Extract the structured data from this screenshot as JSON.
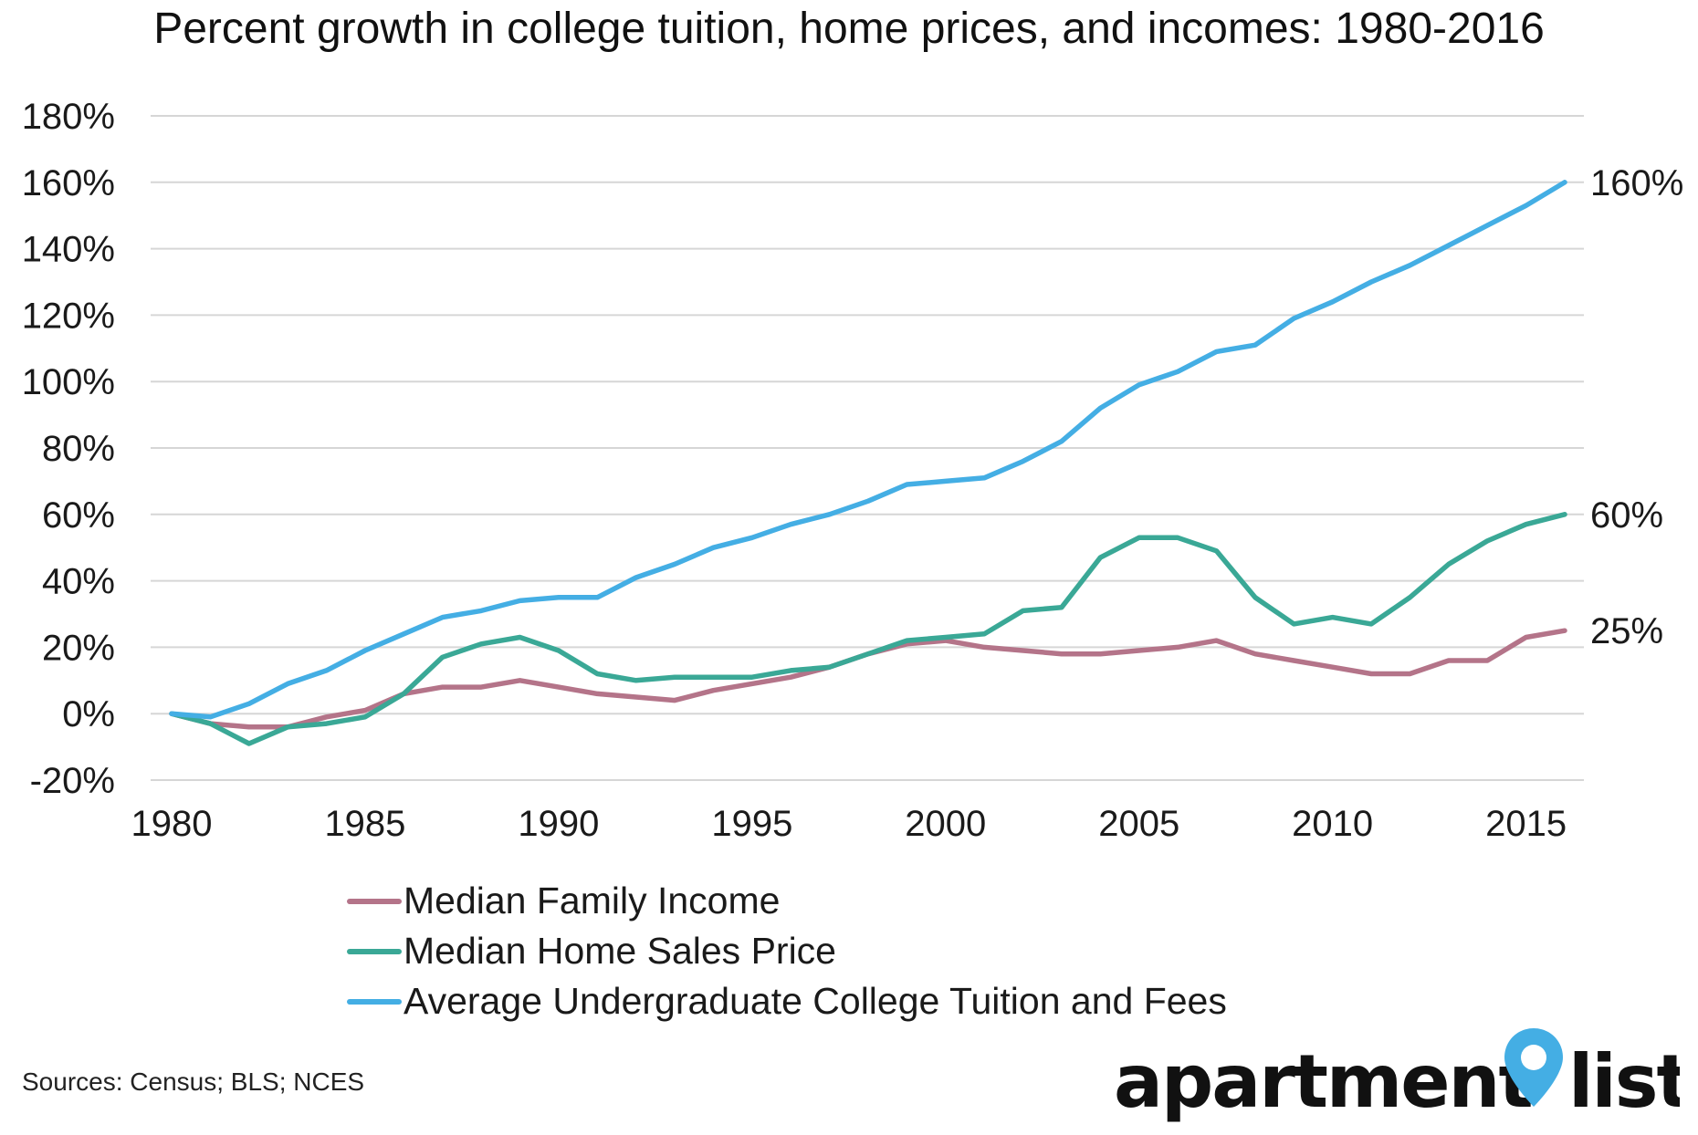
{
  "chart_data": {
    "type": "line",
    "title": "Percent growth in college tuition, home prices, and incomes: 1980-2016",
    "xlabel": "",
    "ylabel": "",
    "x": [
      1980,
      1981,
      1982,
      1983,
      1984,
      1985,
      1986,
      1987,
      1988,
      1989,
      1990,
      1991,
      1992,
      1993,
      1994,
      1995,
      1996,
      1997,
      1998,
      1999,
      2000,
      2001,
      2002,
      2003,
      2004,
      2005,
      2006,
      2007,
      2008,
      2009,
      2010,
      2011,
      2012,
      2013,
      2014,
      2015,
      2016
    ],
    "xlim": [
      1980,
      2016
    ],
    "x_ticks": [
      "1980",
      "1985",
      "1990",
      "1995",
      "2000",
      "2005",
      "2010",
      "2015"
    ],
    "ylim": [
      -20,
      180
    ],
    "y_ticks": [
      "-20%",
      "0%",
      "20%",
      "40%",
      "60%",
      "80%",
      "100%",
      "120%",
      "140%",
      "160%",
      "180%"
    ],
    "grid": true,
    "legend_position": "bottom",
    "series": [
      {
        "name": "Median Family Income",
        "color": "#b47489",
        "values": [
          0,
          -3,
          -4,
          -4,
          -1,
          1,
          6,
          8,
          8,
          10,
          8,
          6,
          5,
          4,
          7,
          9,
          11,
          14,
          18,
          21,
          22,
          20,
          19,
          18,
          18,
          19,
          20,
          22,
          18,
          16,
          14,
          12,
          12,
          16,
          16,
          23,
          25
        ],
        "end_label": "25%"
      },
      {
        "name": "Median Home Sales Price",
        "color": "#3aa896",
        "values": [
          0,
          -3,
          -9,
          -4,
          -3,
          -1,
          6,
          17,
          21,
          23,
          19,
          12,
          10,
          11,
          11,
          11,
          13,
          14,
          18,
          22,
          23,
          24,
          31,
          32,
          47,
          53,
          53,
          49,
          35,
          27,
          29,
          27,
          35,
          45,
          52,
          57,
          60
        ],
        "end_label": "60%"
      },
      {
        "name": "Average Undergraduate College Tuition and Fees",
        "color": "#44aee4",
        "values": [
          0,
          -1,
          3,
          9,
          13,
          19,
          24,
          29,
          31,
          34,
          35,
          35,
          41,
          45,
          50,
          53,
          57,
          60,
          64,
          69,
          70,
          71,
          76,
          82,
          92,
          99,
          103,
          109,
          111,
          119,
          124,
          130,
          135,
          141,
          147,
          153,
          160
        ],
        "end_label": "160%"
      }
    ]
  },
  "source": "Sources: Census; BLS; NCES",
  "brand": {
    "name_left": "apartment",
    "name_right": "list",
    "pin_color": "#44aee4"
  }
}
